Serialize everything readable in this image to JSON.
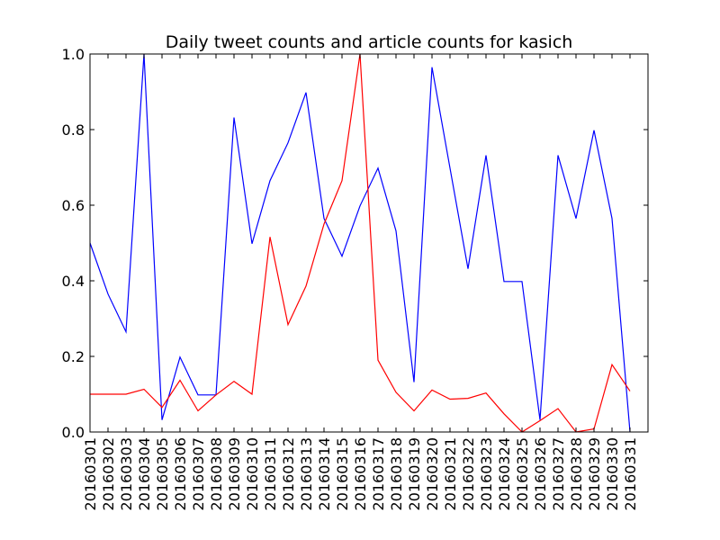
{
  "chart_data": {
    "type": "line",
    "title": "Daily tweet counts and article counts for kasich",
    "xlabel": "",
    "ylabel": "",
    "ylim": [
      0,
      1.0
    ],
    "yticks": [
      "0.0",
      "0.2",
      "0.4",
      "0.6",
      "0.8",
      "1.0"
    ],
    "grid": false,
    "legend": "none",
    "categories": [
      "20160301",
      "20160302",
      "20160303",
      "20160304",
      "20160305",
      "20160306",
      "20160307",
      "20160308",
      "20160309",
      "20160310",
      "20160311",
      "20160312",
      "20160313",
      "20160314",
      "20160315",
      "20160316",
      "20160317",
      "20160318",
      "20160319",
      "20160320",
      "20160321",
      "20160322",
      "20160323",
      "20160324",
      "20160325",
      "20160326",
      "20160327",
      "20160328",
      "20160329",
      "20160330",
      "20160331"
    ],
    "series": [
      {
        "color": "#0000ff",
        "values": [
          0.5,
          0.365,
          0.265,
          1.0,
          0.032,
          0.198,
          0.098,
          0.098,
          0.832,
          0.498,
          0.665,
          0.765,
          0.898,
          0.565,
          0.465,
          0.598,
          0.698,
          0.532,
          0.132,
          0.965,
          0.698,
          0.432,
          0.732,
          0.398,
          0.398,
          0.032,
          0.732,
          0.565,
          0.798,
          0.565,
          0.0
        ]
      },
      {
        "color": "#ff0000",
        "values": [
          0.1,
          0.1,
          0.1,
          0.113,
          0.065,
          0.137,
          0.056,
          0.098,
          0.134,
          0.1,
          0.516,
          0.284,
          0.386,
          0.55,
          0.665,
          1.0,
          0.19,
          0.105,
          0.056,
          0.111,
          0.087,
          0.089,
          0.103,
          0.048,
          0.0,
          0.03,
          0.062,
          0.0,
          0.008,
          0.178,
          0.108
        ]
      }
    ]
  }
}
